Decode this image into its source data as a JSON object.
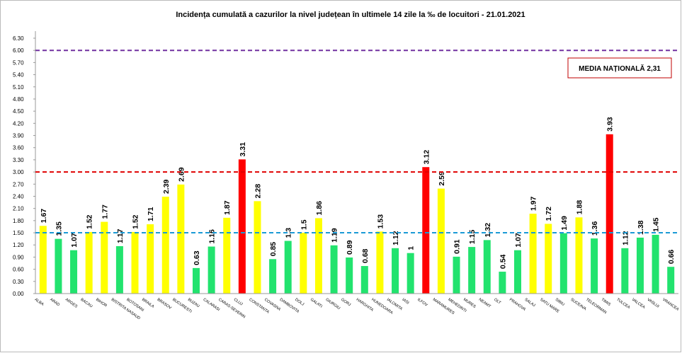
{
  "chart_data": {
    "type": "bar",
    "title": "Incidența cumulată a cazurilor la nivel județean în ultimele 14 zile la ‰ de locuitori - 21.01.2021",
    "annotation": "MEDIA NAȚIONALĂ 2,31",
    "categories": [
      "ALBA",
      "ARAD",
      "ARGES",
      "BACAU",
      "BIHOR",
      "BISTRITA NASAUD",
      "BOTOSANI",
      "BRAILA",
      "BRASOV",
      "BUCURESTI",
      "BUZAU",
      "CALARASI",
      "CARAS-SEVERIN",
      "CLUJ",
      "CONSTANTA",
      "COVASNA",
      "DAMBOVITA",
      "DOLJ",
      "GALATI",
      "GIURGIU",
      "GORJ",
      "HARGHITA",
      "HUNEDOARA",
      "IALOMITA",
      "IASI",
      "ILFOV",
      "MARAMURES",
      "MEHEDINTI",
      "MURES",
      "NEAMT",
      "OLT",
      "PRAHOVA",
      "SALAJ",
      "SATU MARE",
      "SIBIU",
      "SUCEAVA",
      "TELEORMAN",
      "TIMIS",
      "TULCEA",
      "VALCEA",
      "VASLUI",
      "VRANCEA"
    ],
    "values": [
      1.67,
      1.35,
      1.07,
      1.52,
      1.77,
      1.17,
      1.52,
      1.71,
      2.39,
      2.69,
      0.63,
      1.16,
      1.87,
      3.31,
      2.28,
      0.85,
      1.3,
      1.5,
      1.86,
      1.19,
      0.89,
      0.68,
      1.53,
      1.12,
      1,
      3.12,
      2.59,
      0.91,
      1.15,
      1.32,
      0.54,
      1.07,
      1.97,
      1.72,
      1.49,
      1.88,
      1.36,
      3.93,
      1.12,
      1.38,
      1.45,
      0.66
    ],
    "colors": [
      "#ffff00",
      "#22e36e",
      "#22e36e",
      "#ffff00",
      "#ffff00",
      "#22e36e",
      "#ffff00",
      "#ffff00",
      "#ffff00",
      "#ffff00",
      "#22e36e",
      "#22e36e",
      "#ffff00",
      "#ff0000",
      "#ffff00",
      "#22e36e",
      "#22e36e",
      "#ffff00",
      "#ffff00",
      "#22e36e",
      "#22e36e",
      "#22e36e",
      "#ffff00",
      "#22e36e",
      "#22e36e",
      "#ff0000",
      "#ffff00",
      "#22e36e",
      "#22e36e",
      "#22e36e",
      "#22e36e",
      "#22e36e",
      "#ffff00",
      "#ffff00",
      "#22e36e",
      "#ffff00",
      "#22e36e",
      "#ff0000",
      "#22e36e",
      "#22e36e",
      "#22e36e",
      "#22e36e"
    ],
    "ylim": [
      0,
      6.3
    ],
    "yticks": [
      {
        "value": 0,
        "label": "0.00"
      },
      {
        "value": 0.3,
        "label": "0.30"
      },
      {
        "value": 0.6,
        "label": "0.60"
      },
      {
        "value": 0.9,
        "label": "0.90"
      },
      {
        "value": 1.2,
        "label": "1.20"
      },
      {
        "value": 1.5,
        "label": "1.50"
      },
      {
        "value": 1.8,
        "label": "1.80"
      },
      {
        "value": 2.1,
        "label": "2.10"
      },
      {
        "value": 2.4,
        "label": "2.40"
      },
      {
        "value": 2.7,
        "label": "2.70"
      },
      {
        "value": 3,
        "label": "3.00"
      },
      {
        "value": 3.3,
        "label": "3.30"
      },
      {
        "value": 3.6,
        "label": "3.60"
      },
      {
        "value": 3.9,
        "label": "3.90"
      },
      {
        "value": 4.2,
        "label": "4.20"
      },
      {
        "value": 4.5,
        "label": "4.50"
      },
      {
        "value": 4.8,
        "label": "4.80"
      },
      {
        "value": 5.1,
        "label": "5.10"
      },
      {
        "value": 5.4,
        "label": "5.40"
      },
      {
        "value": 5.7,
        "label": "5.70"
      },
      {
        "value": 6,
        "label": "6.00"
      },
      {
        "value": 6.3,
        "label": "6.30"
      }
    ],
    "reference_lines": [
      {
        "value": 6,
        "color": "#7030a0"
      },
      {
        "value": 3,
        "color": "#e00000"
      },
      {
        "value": 1.5,
        "color": "#1a9ad6"
      }
    ]
  }
}
